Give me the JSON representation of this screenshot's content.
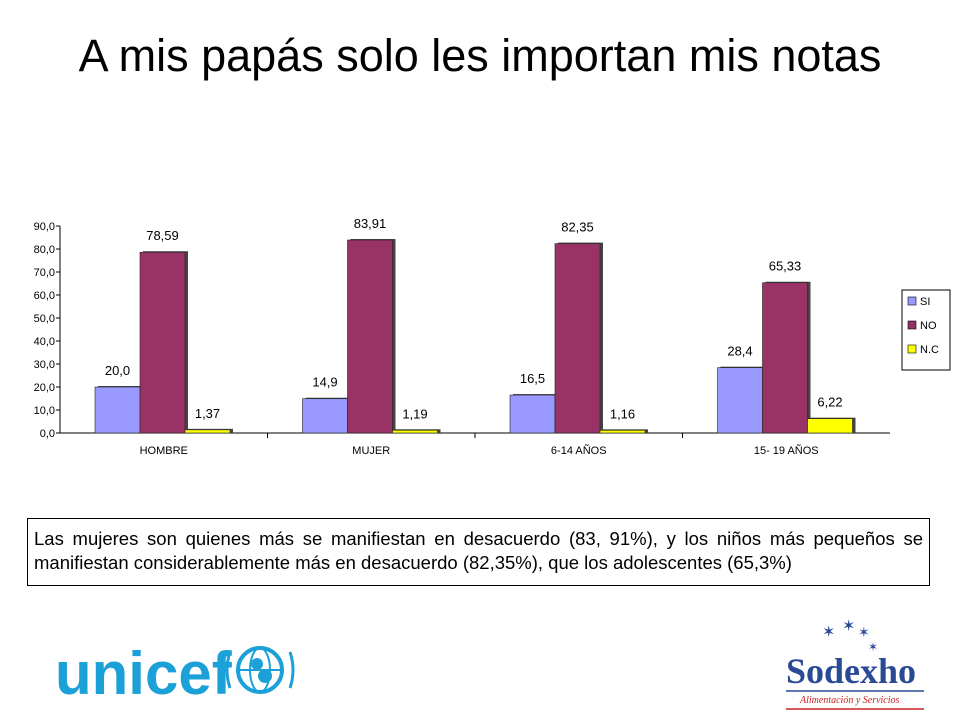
{
  "slide": {
    "title": "A mis papás solo les importan mis notas",
    "caption": "Las mujeres son quienes más se manifiestan en desacuerdo (83, 91%), y los niños más pequeños se manifiestan considerablemente más en desacuerdo (82,35%), que los adolescentes (65,3%)"
  },
  "logos": {
    "unicef": "unicef",
    "sodexho_name": "Sodexho",
    "sodexho_tagline": "Alimentación y Servicios"
  },
  "colors": {
    "si": "#9999ff",
    "no": "#993366",
    "nc": "#ffff00",
    "unicef": "#1ca0d8",
    "sodexho": "#2a4a96",
    "sodexho_red": "#cc2222"
  },
  "chart_data": {
    "type": "bar",
    "categories": [
      "HOMBRE",
      "MUJER",
      "6-14 AÑOS",
      "15- 19 AÑOS"
    ],
    "series": [
      {
        "name": "SI",
        "values": [
          20.0,
          14.9,
          16.5,
          28.4
        ],
        "labels": [
          "20,0",
          "14,9",
          "16,5",
          "28,4"
        ]
      },
      {
        "name": "NO",
        "values": [
          78.59,
          83.91,
          82.35,
          65.33
        ],
        "labels": [
          "78,59",
          "83,91",
          "82,35",
          "65,33"
        ]
      },
      {
        "name": "N.C",
        "values": [
          1.37,
          1.19,
          1.16,
          6.22
        ],
        "labels": [
          "1,37",
          "1,19",
          "1,16",
          "6,22"
        ]
      }
    ],
    "ylim": [
      0,
      90
    ],
    "yticks": [
      "0,0",
      "10,0",
      "20,0",
      "30,0",
      "40,0",
      "50,0",
      "60,0",
      "70,0",
      "80,0",
      "90,0"
    ],
    "legend_position": "right",
    "grid": false
  }
}
